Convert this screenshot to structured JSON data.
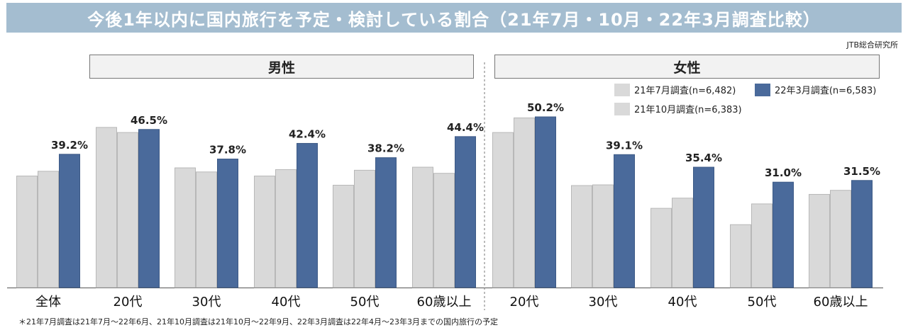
{
  "header": {
    "title": "今後1年以内に国内旅行を予定・検討している割合（21年7月・10月・22年3月調査比較）",
    "source": "JTB総合研究所"
  },
  "panels": {
    "male_label": "男性",
    "female_label": "女性"
  },
  "legend": {
    "jul21": "21年7月調査(n=6,482)",
    "oct21": "21年10月調査(n=6,383)",
    "mar22": "22年3月調査(n=6,583)"
  },
  "footnote": "＊21年7月調査は21年7月～22年6月、21年10月調査は21年10月～22年9月、22年3月調査は22年4月～23年3月までの国内旅行の予定",
  "colors": {
    "jul21": "#d9d9d9",
    "oct21": "#d9d9d9",
    "mar22": "#4a6a9b",
    "title_bg": "#a4bdd0"
  },
  "chart_data": {
    "type": "bar",
    "groups": [
      {
        "panel": "男性",
        "categories": [
          "全体",
          "20代",
          "30代",
          "40代",
          "50代",
          "60歳以上"
        ]
      },
      {
        "panel": "女性",
        "categories": [
          "20代",
          "30代",
          "40代",
          "50代",
          "60歳以上"
        ]
      }
    ],
    "categories": [
      "全体",
      "20代",
      "30代",
      "40代",
      "50代",
      "60歳以上",
      "20代",
      "30代",
      "40代",
      "50代",
      "60歳以上"
    ],
    "series": [
      {
        "name": "21年7月調査(n=6,482)",
        "values": [
          32.8,
          47.1,
          35.2,
          32.8,
          30.1,
          35.4,
          45.6,
          30.0,
          23.3,
          18.5,
          27.4
        ]
      },
      {
        "name": "21年10月調査(n=6,383)",
        "values": [
          34.2,
          45.6,
          34.0,
          34.7,
          34.5,
          33.6,
          49.9,
          30.2,
          26.3,
          24.6,
          28.6
        ]
      },
      {
        "name": "22年3月調査(n=6,583)",
        "values": [
          39.2,
          46.5,
          37.8,
          42.4,
          38.2,
          44.4,
          50.2,
          39.1,
          35.4,
          31.0,
          31.5
        ]
      }
    ],
    "value_labels": [
      "39.2%",
      "46.5%",
      "37.8%",
      "42.4%",
      "38.2%",
      "44.4%",
      "50.2%",
      "39.1%",
      "35.4%",
      "31.0%",
      "31.5%"
    ],
    "ylim": [
      0,
      50.2
    ],
    "grid": false,
    "legend_position": "top-right"
  }
}
